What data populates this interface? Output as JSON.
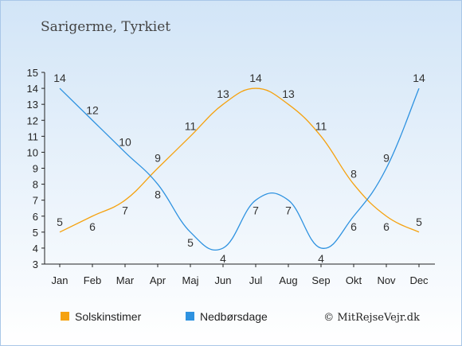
{
  "chart_data": {
    "type": "line",
    "title": "Sarigerme, Tyrkiet",
    "categories": [
      "Jan",
      "Feb",
      "Mar",
      "Apr",
      "Maj",
      "Jun",
      "Jul",
      "Aug",
      "Sep",
      "Okt",
      "Nov",
      "Dec"
    ],
    "ylim": [
      3,
      15
    ],
    "yticks": [
      "3",
      "4",
      "5",
      "6",
      "7",
      "8",
      "9",
      "10",
      "11",
      "12",
      "13",
      "14",
      "15"
    ],
    "grid": false,
    "legend_position": "bottom",
    "series": [
      {
        "name": "Solskinstimer",
        "color": "#f5a20f",
        "values": [
          5,
          6,
          7,
          9,
          11,
          13,
          14,
          13,
          11,
          8,
          6,
          5
        ]
      },
      {
        "name": "Nedbørsdage",
        "color": "#2e92e0",
        "values": [
          14,
          12,
          10,
          8,
          5,
          4,
          7,
          7,
          4,
          6,
          9,
          14
        ]
      }
    ],
    "copyright": "© MitRejseVejr.dk"
  }
}
